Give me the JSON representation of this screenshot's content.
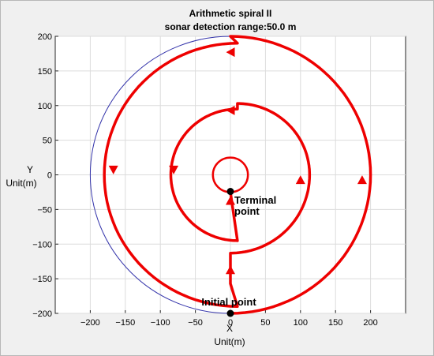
{
  "chart_data": {
    "type": "line",
    "title": "Arithmetic spiral II",
    "subtitle": "sonar detection range:50.0 m",
    "xlabel_top": "X",
    "xlabel_bottom": "Unit(m)",
    "ylabel_top": "Y",
    "ylabel_bottom": "Unit(m)",
    "xlim": [
      -250,
      250
    ],
    "ylim": [
      -200,
      200
    ],
    "xticks": [
      -200,
      -150,
      -100,
      -50,
      0,
      50,
      100,
      150,
      200
    ],
    "yticks": [
      -200,
      -150,
      -100,
      -50,
      0,
      50,
      100,
      150,
      200
    ],
    "grid": true,
    "colors": {
      "path": "#ee0000",
      "boundary": "#3333aa",
      "grid": "#dcdcdc",
      "marker": "#000000"
    },
    "boundary_circle": {
      "center": [
        0,
        0
      ],
      "radius": 200
    },
    "inner_circle": {
      "center": [
        0,
        0
      ],
      "radius": 25
    },
    "series": [
      {
        "path": [
          [
            0,
            -200
          ],
          {
            "arc": {
              "cx": 0,
              "cy": 0,
              "r": 200,
              "from": -90,
              "to": 90
            }
          },
          {
            "arc": {
              "cx": 10,
              "cy": 0,
              "r": 190,
              "from": 90,
              "to": 270
            }
          },
          [
            0,
            -157
          ],
          [
            0,
            -113
          ],
          {
            "arc": {
              "cx": 0,
              "cy": 0,
              "r": 113,
              "from": -90,
              "to": 0
            }
          },
          {
            "arc": {
              "cx": 10,
              "cy": 0,
              "r": 103,
              "from": 0,
              "to": 90
            }
          },
          {
            "arc": {
              "cx": 10,
              "cy": 0,
              "r": 95,
              "from": 90,
              "to": 180
            }
          },
          {
            "arc": {
              "cx": 10,
              "cy": 0,
              "r": 95,
              "from": 180,
              "to": 270
            }
          },
          [
            0,
            -25
          ]
        ]
      }
    ],
    "arrows": [
      {
        "x": 188,
        "y": -7,
        "dir": "up"
      },
      {
        "x": 100,
        "y": -7,
        "dir": "up"
      },
      {
        "x": 0,
        "y": -137,
        "dir": "up"
      },
      {
        "x": 0,
        "y": -37,
        "dir": "up"
      },
      {
        "x": 0,
        "y": 177,
        "dir": "left"
      },
      {
        "x": 0,
        "y": 93,
        "dir": "left"
      },
      {
        "x": -167,
        "y": 7,
        "dir": "down"
      },
      {
        "x": -81,
        "y": 7,
        "dir": "down"
      }
    ],
    "markers": [
      {
        "x": 0,
        "y": -200,
        "label": "Initial point"
      },
      {
        "x": 0,
        "y": -24,
        "label_line1": "Terminal",
        "label_line2": "point"
      }
    ]
  }
}
